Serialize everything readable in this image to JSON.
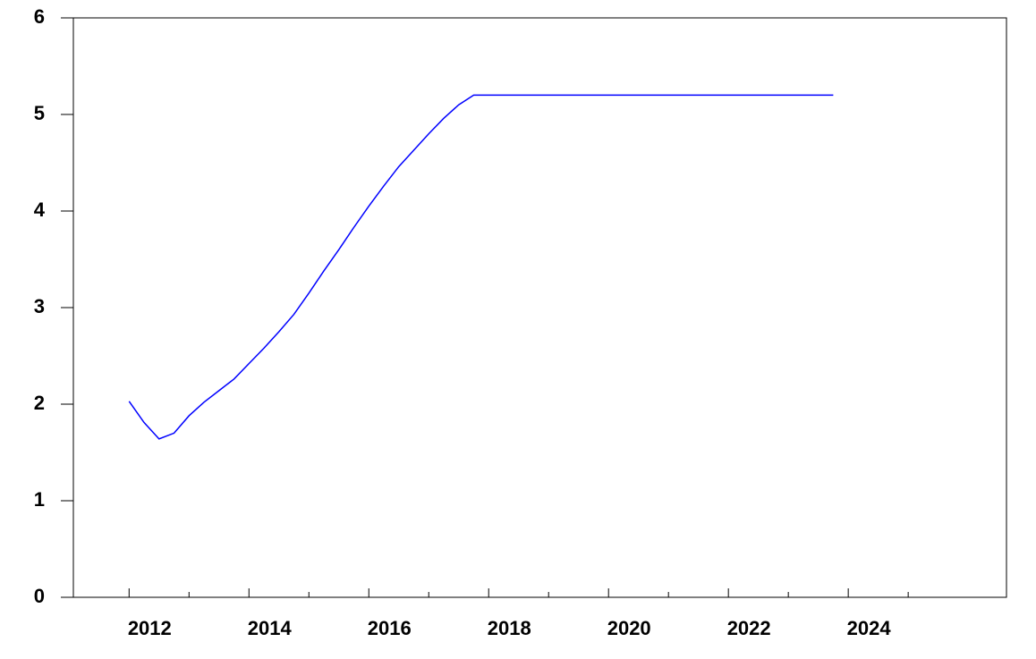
{
  "chart_data": {
    "type": "line",
    "x": [
      2012.0,
      2012.25,
      2012.5,
      2012.75,
      2013.0,
      2013.25,
      2013.5,
      2013.75,
      2014.0,
      2014.25,
      2014.5,
      2014.75,
      2015.0,
      2015.25,
      2015.5,
      2015.75,
      2016.0,
      2016.25,
      2016.5,
      2016.75,
      2017.0,
      2017.25,
      2017.5,
      2017.75,
      2023.75
    ],
    "series": [
      {
        "color": "#0000ff",
        "values": [
          2.03,
          1.81,
          1.64,
          1.7,
          1.88,
          2.02,
          2.14,
          2.26,
          2.42,
          2.58,
          2.75,
          2.93,
          3.15,
          3.38,
          3.6,
          3.83,
          4.05,
          4.26,
          4.46,
          4.63,
          4.8,
          4.96,
          5.1,
          5.2,
          5.2
        ]
      }
    ],
    "xlim": [
      2011.07,
      2026.64
    ],
    "xticks": [
      2012,
      2014,
      2016,
      2018,
      2020,
      2022,
      2024
    ],
    "xminorticks": [
      2013,
      2015,
      2017,
      2019,
      2021,
      2023,
      2025
    ],
    "ylim": [
      0,
      6
    ],
    "yticks": [
      0,
      1,
      2,
      3,
      4,
      5,
      6
    ]
  }
}
